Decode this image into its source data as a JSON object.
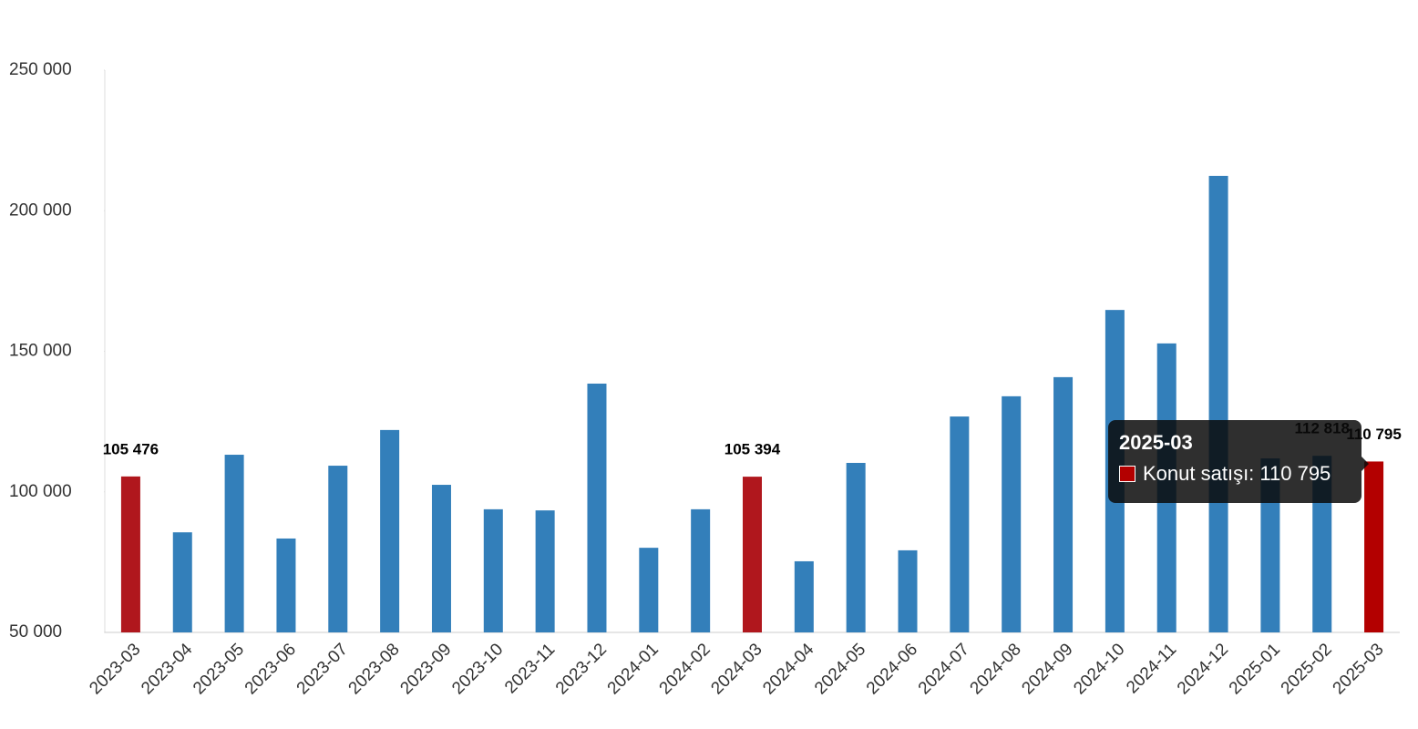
{
  "chart_data": {
    "type": "bar",
    "categories": [
      "2023-03",
      "2023-04",
      "2023-05",
      "2023-06",
      "2023-07",
      "2023-08",
      "2023-09",
      "2023-10",
      "2023-11",
      "2023-12",
      "2024-01",
      "2024-02",
      "2024-03",
      "2024-04",
      "2024-05",
      "2024-06",
      "2024-07",
      "2024-08",
      "2024-09",
      "2024-10",
      "2024-11",
      "2024-12",
      "2025-01",
      "2025-02",
      "2025-03"
    ],
    "series": [
      {
        "name": "Konut satışı",
        "color": "#337fba",
        "colors": [
          "#b0171d",
          "#337fba",
          "#337fba",
          "#337fba",
          "#337fba",
          "#337fba",
          "#337fba",
          "#337fba",
          "#337fba",
          "#337fba",
          "#337fba",
          "#337fba",
          "#b0171d",
          "#337fba",
          "#337fba",
          "#337fba",
          "#337fba",
          "#337fba",
          "#337fba",
          "#337fba",
          "#337fba",
          "#337fba",
          "#337fba",
          "#337fba",
          "#b30000"
        ],
        "values": [
          105476,
          85600,
          113200,
          83400,
          109300,
          122000,
          102500,
          93800,
          93400,
          138500,
          80100,
          93800,
          105394,
          75300,
          110300,
          79200,
          126800,
          134000,
          140800,
          164700,
          152800,
          212400,
          111900,
          112818,
          110795
        ],
        "value_labels": [
          "105 476",
          null,
          null,
          null,
          null,
          null,
          null,
          null,
          null,
          null,
          null,
          null,
          "105 394",
          null,
          null,
          null,
          null,
          null,
          null,
          null,
          null,
          null,
          null,
          "112 818",
          "110 795"
        ]
      }
    ],
    "ylim": [
      50000,
      250000
    ],
    "yticks": [
      {
        "value": 50000,
        "label": "50 000"
      },
      {
        "value": 100000,
        "label": "100 000"
      },
      {
        "value": 150000,
        "label": "150 000"
      },
      {
        "value": 200000,
        "label": "200 000"
      },
      {
        "value": 250000,
        "label": "250 000"
      }
    ],
    "tooltip": {
      "title": "2025-03",
      "text": "Konut satışı: 110 795"
    }
  }
}
